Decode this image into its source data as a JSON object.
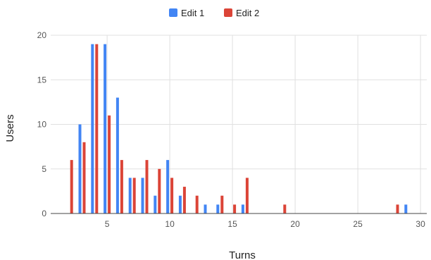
{
  "chart_data": {
    "type": "bar",
    "title": "",
    "xlabel": "Turns",
    "ylabel": "Users",
    "xlim": [
      0.5,
      30.5
    ],
    "ylim": [
      0,
      20
    ],
    "x_ticks": [
      5,
      10,
      15,
      20,
      25,
      30
    ],
    "y_ticks": [
      0,
      5,
      10,
      15,
      20
    ],
    "grid": true,
    "legend_position": "top-center",
    "series": [
      {
        "name": "Edit 1",
        "color": "#4285F4",
        "points": [
          {
            "x": 3,
            "y": 10
          },
          {
            "x": 4,
            "y": 19
          },
          {
            "x": 5,
            "y": 19
          },
          {
            "x": 6,
            "y": 13
          },
          {
            "x": 7,
            "y": 4
          },
          {
            "x": 8,
            "y": 4
          },
          {
            "x": 9,
            "y": 2
          },
          {
            "x": 10,
            "y": 6
          },
          {
            "x": 11,
            "y": 2
          },
          {
            "x": 13,
            "y": 1
          },
          {
            "x": 14,
            "y": 1
          },
          {
            "x": 16,
            "y": 1
          },
          {
            "x": 29,
            "y": 1
          }
        ]
      },
      {
        "name": "Edit 2",
        "color": "#DB4437",
        "points": [
          {
            "x": 2,
            "y": 6
          },
          {
            "x": 3,
            "y": 8
          },
          {
            "x": 4,
            "y": 19
          },
          {
            "x": 5,
            "y": 11
          },
          {
            "x": 6,
            "y": 6
          },
          {
            "x": 7,
            "y": 4
          },
          {
            "x": 8,
            "y": 6
          },
          {
            "x": 9,
            "y": 5
          },
          {
            "x": 10,
            "y": 4
          },
          {
            "x": 11,
            "y": 3
          },
          {
            "x": 12,
            "y": 2
          },
          {
            "x": 14,
            "y": 2
          },
          {
            "x": 15,
            "y": 1
          },
          {
            "x": 16,
            "y": 4
          },
          {
            "x": 19,
            "y": 1
          },
          {
            "x": 28,
            "y": 1
          }
        ]
      }
    ]
  }
}
